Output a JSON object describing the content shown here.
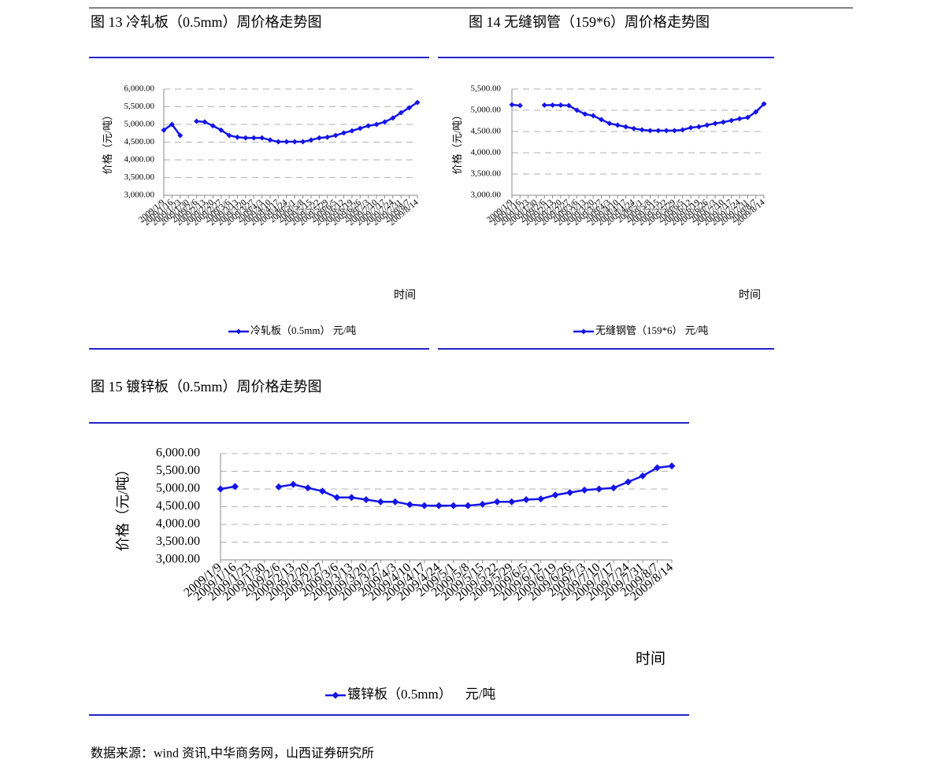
{
  "chart_data": [
    {
      "type": "line",
      "title": "图 13 冷轧板（0.5mm）周价格走势图",
      "categories": [
        "2009/1/9",
        "2009/1/16",
        "2009/1/23",
        "2009/1/30",
        "2009/2/6",
        "2009/2/13",
        "2009/2/20",
        "2009/2/27",
        "2009/3/6",
        "2009/3/13",
        "2009/3/20",
        "2009/3/27",
        "2009/4/3",
        "2009/4/10",
        "2009/4/17",
        "2009/4/24",
        "2009/5/1",
        "2009/5/8",
        "2009/5/15",
        "2009/5/22",
        "2009/5/29",
        "2009/6/5",
        "2009/6/12",
        "2009/6/19",
        "2009/6/26",
        "2009/7/3",
        "2009/7/10",
        "2009/7/17",
        "2009/7/24",
        "2009/7/31",
        "2009/8/7",
        "2009/8/14"
      ],
      "series": [
        {
          "name": "冷轧板（0.5mm） 元/吨",
          "color": "#1414e6",
          "values": [
            4840,
            5000,
            4690,
            null,
            5090,
            5070,
            4960,
            4840,
            4690,
            4640,
            4620,
            4620,
            4620,
            4560,
            4510,
            4510,
            4510,
            4510,
            4560,
            4620,
            4640,
            4690,
            4760,
            4820,
            4890,
            4960,
            5000,
            5070,
            5180,
            5330,
            5470,
            5620
          ]
        }
      ],
      "ylim": [
        3000,
        6000
      ],
      "yticks": [
        {
          "value": 3000,
          "label": "3,000.00"
        },
        {
          "value": 3500,
          "label": "3,500.00"
        },
        {
          "value": 4000,
          "label": "4,000.00"
        },
        {
          "value": 4500,
          "label": "4,500.00"
        },
        {
          "value": 5000,
          "label": "5,000.00"
        },
        {
          "value": 5500,
          "label": "5,500.00"
        },
        {
          "value": 6000,
          "label": "6,000.00"
        }
      ],
      "y_label": "价格（元/吨）",
      "x_label": "时间",
      "grid": true
    },
    {
      "type": "line",
      "title": "图 14 无缝钢管（159*6）周价格走势图",
      "categories": [
        "2009/1/9",
        "2009/1/16",
        "2009/1/23",
        "2009/1/30",
        "2009/2/6",
        "2009/2/13",
        "2009/2/20",
        "2009/2/27",
        "2009/3/6",
        "2009/3/13",
        "2009/3/20",
        "2009/3/27",
        "2009/4/3",
        "2009/4/10",
        "2009/4/17",
        "2009/4/24",
        "2009/5/1",
        "2009/5/8",
        "2009/5/15",
        "2009/5/22",
        "2009/5/29",
        "2009/6/5",
        "2009/6/12",
        "2009/6/19",
        "2009/6/26",
        "2009/7/3",
        "2009/7/10",
        "2009/7/17",
        "2009/7/24",
        "2009/7/31",
        "2009/8/7",
        "2009/8/14"
      ],
      "series": [
        {
          "name": "无缝钢管（159*6） 元/吨",
          "color": "#1414e6",
          "values": [
            5130,
            5110,
            null,
            null,
            5120,
            5120,
            5120,
            5110,
            5000,
            4910,
            4870,
            4780,
            4690,
            4650,
            4610,
            4570,
            4540,
            4520,
            4520,
            4520,
            4520,
            4540,
            4590,
            4610,
            4650,
            4690,
            4720,
            4760,
            4800,
            4830,
            4960,
            5150
          ]
        }
      ],
      "ylim": [
        3000,
        5500
      ],
      "yticks": [
        {
          "value": 3000,
          "label": "3,000.00"
        },
        {
          "value": 3500,
          "label": "3,500.00"
        },
        {
          "value": 4000,
          "label": "4,000.00"
        },
        {
          "value": 4500,
          "label": "4,500.00"
        },
        {
          "value": 5000,
          "label": "5,000.00"
        },
        {
          "value": 5500,
          "label": "5,500.00"
        }
      ],
      "y_label": "价格（元/吨）",
      "x_label": "时间",
      "grid": true
    },
    {
      "type": "line",
      "title": "图 15 镀锌板（0.5mm）周价格走势图",
      "categories": [
        "2009/1/9",
        "2009/1/16",
        "2009/1/23",
        "2009/1/30",
        "2009/2/6",
        "2009/2/13",
        "2009/2/20",
        "2009/2/27",
        "2009/3/6",
        "2009/3/13",
        "2009/3/20",
        "2009/3/27",
        "2009/4/3",
        "2009/4/10",
        "2009/4/17",
        "2009/4/24",
        "2009/5/1",
        "2009/5/8",
        "2009/5/15",
        "2009/5/22",
        "2009/5/29",
        "2009/6/5",
        "2009/6/12",
        "2009/6/19",
        "2009/6/26",
        "2009/7/3",
        "2009/7/10",
        "2009/7/17",
        "2009/7/24",
        "2009/7/31",
        "2009/8/7",
        "2009/8/14"
      ],
      "series": [
        {
          "name": "镀锌板（0.5mm）    元/吨",
          "color": "#1414e6",
          "values": [
            5000,
            5070,
            null,
            null,
            5060,
            5130,
            5030,
            4940,
            4760,
            4760,
            4700,
            4640,
            4640,
            4560,
            4530,
            4530,
            4530,
            4530,
            4570,
            4640,
            4640,
            4700,
            4720,
            4830,
            4900,
            4970,
            5000,
            5030,
            5200,
            5370,
            5600,
            5650
          ]
        }
      ],
      "ylim": [
        3000,
        6000
      ],
      "yticks": [
        {
          "value": 3000,
          "label": "3,000.00"
        },
        {
          "value": 3500,
          "label": "3,500.00"
        },
        {
          "value": 4000,
          "label": "4,000.00"
        },
        {
          "value": 4500,
          "label": "4,500.00"
        },
        {
          "value": 5000,
          "label": "5,000.00"
        },
        {
          "value": 5500,
          "label": "5,500.00"
        },
        {
          "value": 6000,
          "label": "6,000.00"
        }
      ],
      "y_label": "价格（元/吨）",
      "x_label": "时间",
      "grid": true
    }
  ],
  "source": "数据来源：wind 资讯,中华商务网，山西证券研究所"
}
